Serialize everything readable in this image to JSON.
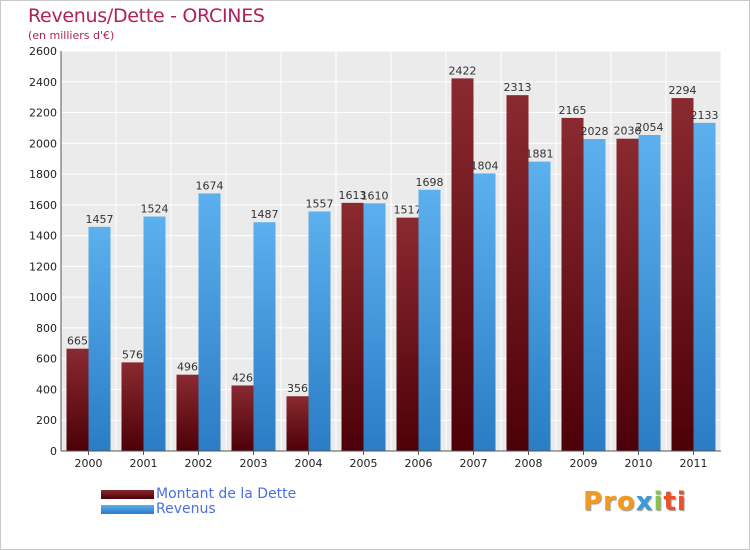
{
  "chart_data": {
    "type": "bar",
    "title": "Revenus/Dette - ORCINES",
    "subtitle": "(en milliers d'€)",
    "categories": [
      "2000",
      "2001",
      "2002",
      "2003",
      "2004",
      "2005",
      "2006",
      "2007",
      "2008",
      "2009",
      "2010",
      "2011"
    ],
    "series": [
      {
        "name": "Montant de la Dette",
        "color": "#7a1e22",
        "values": [
          665,
          576,
          496,
          426,
          356,
          1613,
          1517,
          2422,
          2313,
          2165,
          2030,
          2294
        ],
        "labels": [
          "665",
          "576",
          "496",
          "426",
          "356",
          "1613",
          "1517",
          "2422",
          "2313",
          "2165",
          "2030",
          "2294"
        ]
      },
      {
        "name": "Revenus",
        "color": "#4aa3e6",
        "values": [
          1457,
          1524,
          1674,
          1487,
          1557,
          1610,
          1698,
          1804,
          1881,
          2028,
          2054,
          2133
        ],
        "labels": [
          "1457",
          "1524",
          "1674",
          "1487",
          "1557",
          "1610",
          "1698",
          "1804",
          "1881",
          "2028",
          "2054",
          "2133"
        ]
      }
    ],
    "ylim": [
      0,
      2600
    ],
    "yticks": [
      "0",
      "200",
      "400",
      "600",
      "800",
      "1000",
      "1200",
      "1400",
      "1600",
      "1800",
      "2000",
      "2200",
      "2400",
      "2600"
    ],
    "grid": true,
    "legend_position": "bottom-left"
  },
  "logo": {
    "p1": "Pro",
    "p2": "x",
    "p3": "i",
    "p4": "ti"
  }
}
